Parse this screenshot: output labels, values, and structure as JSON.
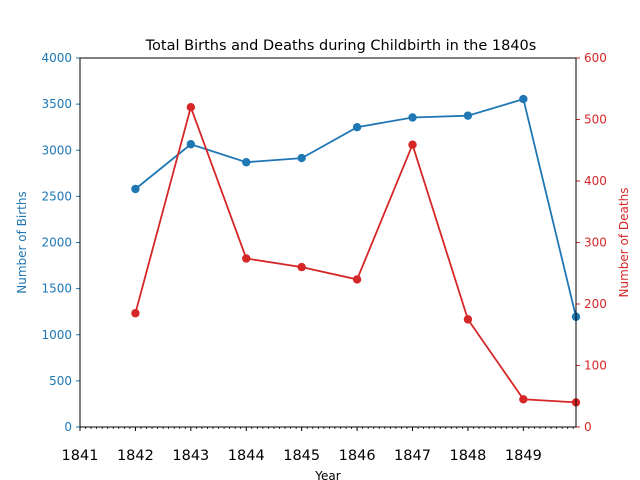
{
  "chart_data": {
    "type": "line",
    "title": "Total Births and Deaths during Childbirth in the 1840s",
    "xlabel": "Year",
    "x": [
      1841,
      1842,
      1843,
      1844,
      1845,
      1846,
      1847,
      1848,
      1849
    ],
    "x_tick_labels": [
      "1841",
      "1842",
      "1843",
      "1844",
      "1845",
      "1846",
      "1847",
      "1848",
      "1849"
    ],
    "xlim": [
      1841,
      1849.95
    ],
    "minor_ticks_per_year": 10,
    "grid": false,
    "axes": {
      "left": {
        "label": "Number of Births",
        "color": "#1f77b4",
        "ylim": [
          0,
          4000
        ],
        "ticks": [
          0,
          500,
          1000,
          1500,
          2000,
          2500,
          3000,
          3500,
          4000
        ]
      },
      "right": {
        "label": "Number of Deaths",
        "color": "#d62728",
        "ylim": [
          0,
          600
        ],
        "ticks": [
          0,
          100,
          200,
          300,
          400,
          500,
          600
        ]
      }
    },
    "series": [
      {
        "axis": "left",
        "color": "#1f77b4",
        "points": [
          {
            "x": 1842,
            "y": 2580
          },
          {
            "x": 1843,
            "y": 3065
          },
          {
            "x": 1844,
            "y": 2870
          },
          {
            "x": 1845,
            "y": 2915
          },
          {
            "x": 1846,
            "y": 3250
          },
          {
            "x": 1847,
            "y": 3355
          },
          {
            "x": 1848,
            "y": 3375
          },
          {
            "x": 1849,
            "y": 3555
          },
          {
            "x": 1849.95,
            "y": 1195
          }
        ]
      },
      {
        "axis": "right",
        "color": "#d62728",
        "points": [
          {
            "x": 1842,
            "y": 185
          },
          {
            "x": 1843,
            "y": 520
          },
          {
            "x": 1844,
            "y": 274
          },
          {
            "x": 1845,
            "y": 260
          },
          {
            "x": 1846,
            "y": 240
          },
          {
            "x": 1847,
            "y": 459
          },
          {
            "x": 1848,
            "y": 175
          },
          {
            "x": 1849,
            "y": 45
          },
          {
            "x": 1849.95,
            "y": 40
          }
        ]
      }
    ]
  }
}
